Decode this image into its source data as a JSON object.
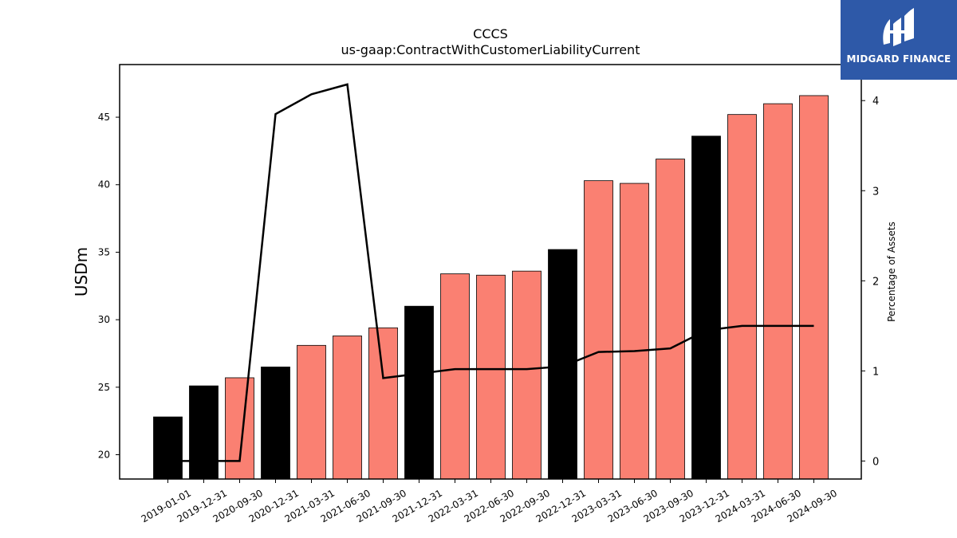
{
  "logo": {
    "text": "MIDGARD FINANCE",
    "icon": "midgard-logo-icon",
    "background": "#2e59a8"
  },
  "chart_data": {
    "type": "bar",
    "title": "CCCS",
    "subtitle": "us-gaap:ContractWithCustomerLiabilityCurrent",
    "xlabel": "",
    "ylabel": "USDm",
    "y2label": "Percentage of Assets",
    "ylim": [
      18.2,
      48.9
    ],
    "y2lim": [
      -0.2,
      4.4
    ],
    "yticks": [
      20,
      25,
      30,
      35,
      40,
      45
    ],
    "y2ticks": [
      0,
      1,
      2,
      3,
      4
    ],
    "categories": [
      "2019-01-01",
      "2019-12-31",
      "2020-09-30",
      "2020-12-31",
      "2021-03-31",
      "2021-06-30",
      "2021-09-30",
      "2021-12-31",
      "2022-03-31",
      "2022-06-30",
      "2022-09-30",
      "2022-12-31",
      "2023-03-31",
      "2023-06-30",
      "2023-09-30",
      "2023-12-31",
      "2024-03-31",
      "2024-06-30",
      "2024-09-30"
    ],
    "series": [
      {
        "type": "bar",
        "axis": "left",
        "values": [
          22.8,
          25.1,
          25.7,
          26.5,
          28.1,
          28.8,
          29.4,
          31.0,
          33.4,
          33.3,
          33.6,
          35.2,
          40.3,
          40.1,
          41.9,
          43.6,
          45.2,
          46.0,
          46.6
        ],
        "colors": [
          "#000000",
          "#000000",
          "#fa8072",
          "#000000",
          "#fa8072",
          "#fa8072",
          "#fa8072",
          "#000000",
          "#fa8072",
          "#fa8072",
          "#fa8072",
          "#000000",
          "#fa8072",
          "#fa8072",
          "#fa8072",
          "#000000",
          "#fa8072",
          "#fa8072",
          "#fa8072"
        ]
      },
      {
        "type": "line",
        "axis": "right",
        "color": "#000000",
        "values": [
          0.0,
          0.0,
          0.0,
          3.85,
          4.07,
          4.18,
          0.92,
          0.97,
          1.02,
          1.02,
          1.02,
          1.05,
          1.21,
          1.22,
          1.25,
          1.45,
          1.5,
          1.5,
          1.5
        ]
      }
    ],
    "colors": {
      "annual": "#000000",
      "quarterly": "#fa8072",
      "line": "#000000"
    },
    "grid": false,
    "legend": "none"
  }
}
